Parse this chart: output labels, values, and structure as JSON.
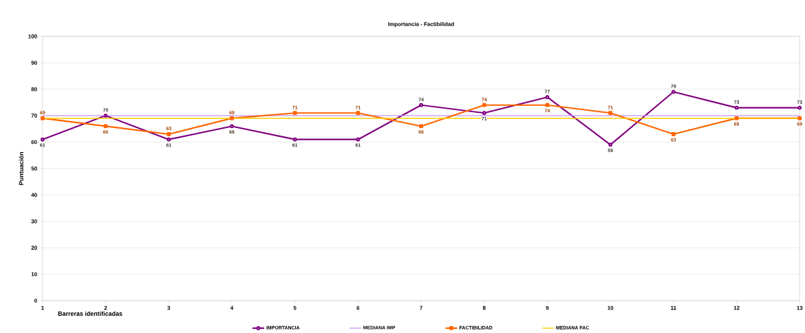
{
  "chart_data": {
    "type": "line",
    "title": "Importancia - Factibilidad",
    "xlabel": "Barreras identificadas",
    "ylabel": "Puntuación",
    "x": [
      1,
      2,
      3,
      4,
      5,
      6,
      7,
      8,
      9,
      10,
      11,
      12,
      13
    ],
    "xlim": [
      1,
      13
    ],
    "xticks": [
      1,
      2,
      3,
      4,
      5,
      6,
      7,
      8,
      9,
      10,
      11,
      12,
      13
    ],
    "ylim": [
      0,
      100
    ],
    "yticks": [
      0,
      10,
      20,
      30,
      40,
      50,
      60,
      70,
      80,
      90,
      100
    ],
    "grid": "y",
    "legend": "bottom",
    "series": [
      {
        "name": "IMPORTANCIA",
        "color": "#800080",
        "marker": "circle",
        "values": [
          61,
          70,
          61,
          66,
          61,
          61,
          74,
          71,
          77,
          59,
          79,
          73,
          73
        ],
        "value_labels": [
          "61",
          "70",
          "61",
          "66",
          "61",
          "61",
          "74",
          "71",
          "77",
          "59",
          "79",
          "73",
          "73"
        ]
      },
      {
        "name": "MEDIANA IMP",
        "color": "#cc99ff",
        "marker": "none",
        "values": [
          70,
          70,
          70,
          70,
          70,
          70,
          70,
          70,
          70,
          70,
          70,
          70,
          70
        ]
      },
      {
        "name": "FACTIBILIDAD",
        "color": "#ff6600",
        "marker": "square",
        "values": [
          69,
          66,
          63,
          69,
          71,
          71,
          66,
          74,
          74,
          71,
          63,
          69,
          69
        ],
        "value_labels": [
          "69",
          "66",
          "63",
          "69",
          "71",
          "71",
          "66",
          "74",
          "74",
          "71",
          "63",
          "69",
          "69"
        ]
      },
      {
        "name": "MEDIANA FAC",
        "color": "#ffcc00",
        "marker": "none",
        "values": [
          69,
          69,
          69,
          69,
          69,
          69,
          69,
          69,
          69,
          69,
          69,
          69,
          69
        ]
      }
    ]
  }
}
